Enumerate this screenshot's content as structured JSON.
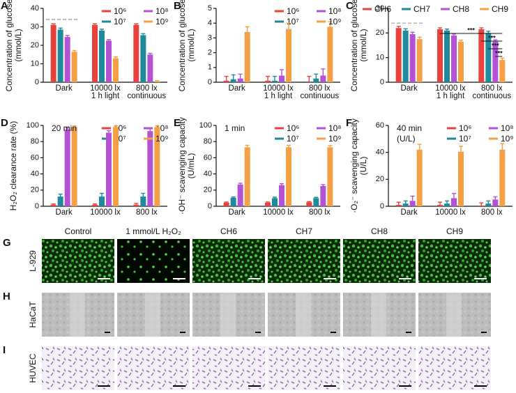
{
  "chart_data": [
    {
      "type": "bar",
      "panel": "A",
      "ylabel": [
        "Concentration of glucose",
        "(mmol/L)"
      ],
      "categories": [
        "Dark",
        "10000 lx\n1 h light",
        "800 lx\ncontinuous"
      ],
      "series": [
        {
          "name": "10⁶",
          "color": "#e8423f",
          "values": [
            31,
            31,
            31
          ],
          "errors": [
            0.6,
            0.6,
            0.6
          ]
        },
        {
          "name": "10⁷",
          "color": "#1f8a9c",
          "values": [
            28.5,
            28,
            25.5
          ],
          "errors": [
            0.8,
            0.7,
            0.8
          ]
        },
        {
          "name": "10⁸",
          "color": "#b452d6",
          "values": [
            24.5,
            22.5,
            15
          ],
          "errors": [
            0.8,
            0.6,
            0.7
          ]
        },
        {
          "name": "10⁹",
          "color": "#f5a046",
          "values": [
            16.5,
            13,
            0.5
          ],
          "errors": [
            0.7,
            0.7,
            0.3
          ]
        }
      ],
      "reference_line": 34,
      "ylim": [
        0,
        40
      ],
      "yticks": [
        0,
        10,
        20,
        30,
        40
      ],
      "legend": "top-right"
    },
    {
      "type": "bar",
      "panel": "B",
      "ylabel": [
        "Concentration of glucose",
        "(mmol/L)"
      ],
      "categories": [
        "Dark",
        "10000 lx\n1 h light",
        "800 lx\ncontinuous"
      ],
      "series": [
        {
          "name": "10⁶",
          "color": "#e8423f",
          "values": [
            0.1,
            0.1,
            0
          ],
          "errors": [
            0.3,
            0.3,
            0.4
          ]
        },
        {
          "name": "10⁷",
          "color": "#1f8a9c",
          "values": [
            0.2,
            0.1,
            0.25
          ],
          "errors": [
            0.3,
            0.3,
            0.3
          ]
        },
        {
          "name": "10⁸",
          "color": "#b452d6",
          "values": [
            0.25,
            0.45,
            0.45
          ],
          "errors": [
            0.3,
            0.4,
            0.45
          ]
        },
        {
          "name": "10⁹",
          "color": "#f5a046",
          "values": [
            3.4,
            3.6,
            3.75
          ],
          "errors": [
            0.35,
            0.4,
            0.35
          ]
        }
      ],
      "ylim": [
        0,
        5
      ],
      "yticks": [
        0,
        1,
        2,
        3,
        4,
        5
      ],
      "legend": "top-right"
    },
    {
      "type": "bar",
      "panel": "C",
      "ylabel": [
        "Concentration of glucose",
        "(mmol/L)"
      ],
      "categories": [
        "Dark",
        "10000 lx\n1 h light",
        "800 lx\ncontinuous"
      ],
      "series": [
        {
          "name": "CH6",
          "color": "#e8423f",
          "values": [
            22,
            21.5,
            21.5
          ],
          "errors": [
            0.7,
            0.6,
            0.6
          ]
        },
        {
          "name": "CH7",
          "color": "#1f8a9c",
          "values": [
            21,
            21,
            20
          ],
          "errors": [
            0.7,
            0.6,
            0.7
          ]
        },
        {
          "name": "CH8",
          "color": "#b452d6",
          "values": [
            19.5,
            19,
            16.5
          ],
          "errors": [
            0.8,
            0.6,
            0.7
          ]
        },
        {
          "name": "CH9",
          "color": "#f5a046",
          "values": [
            17.5,
            16.5,
            9
          ],
          "errors": [
            0.8,
            0.6,
            0.8
          ]
        }
      ],
      "significance": [
        "***",
        "***",
        "***",
        "***"
      ],
      "reference_line": 24,
      "ylim": [
        0,
        30
      ],
      "yticks": [
        0,
        10,
        20,
        30
      ],
      "legend": "top"
    },
    {
      "type": "bar",
      "panel": "D",
      "ylabel": [
        "H₂O₂ clearance rate (%)"
      ],
      "annotation": [
        "20 min"
      ],
      "categories": [
        "Dark",
        "10000 lx",
        "800 lx"
      ],
      "series": [
        {
          "name": "10⁶",
          "color": "#e8423f",
          "values": [
            2,
            2,
            2
          ],
          "errors": [
            1,
            1,
            1.5
          ]
        },
        {
          "name": "10⁷",
          "color": "#1f8a9c",
          "values": [
            12,
            12,
            12
          ],
          "errors": [
            3,
            4,
            4
          ]
        },
        {
          "name": "10⁸",
          "color": "#b452d6",
          "values": [
            95,
            91,
            93
          ],
          "errors": [
            2.5,
            2.5,
            3
          ]
        },
        {
          "name": "10⁹",
          "color": "#f5a046",
          "values": [
            98,
            98,
            98
          ],
          "errors": [
            1.5,
            1.5,
            1.5
          ]
        }
      ],
      "ylim": [
        0,
        100
      ],
      "yticks": [
        0,
        20,
        40,
        60,
        80,
        100
      ],
      "legend": "top-right"
    },
    {
      "type": "bar",
      "panel": "E",
      "ylabel": [
        "·OH⁻ scavenging capacity",
        "(U/mL)"
      ],
      "annotation": [
        "1 min"
      ],
      "categories": [
        "Dark",
        "10000 lx",
        "800 lx"
      ],
      "series": [
        {
          "name": "10⁶",
          "color": "#e8423f",
          "values": [
            4.5,
            4.5,
            5
          ],
          "errors": [
            0.7,
            0.7,
            0.8
          ]
        },
        {
          "name": "10⁷",
          "color": "#1f8a9c",
          "values": [
            10.5,
            10,
            10
          ],
          "errors": [
            1,
            1.2,
            1
          ]
        },
        {
          "name": "10⁸",
          "color": "#b452d6",
          "values": [
            27,
            26,
            25
          ],
          "errors": [
            1.5,
            1.8,
            1.8
          ]
        },
        {
          "name": "10⁹",
          "color": "#f5a046",
          "values": [
            73,
            73,
            73
          ],
          "errors": [
            2.5,
            2.5,
            2
          ]
        }
      ],
      "ylim": [
        0,
        100
      ],
      "yticks": [
        0,
        20,
        40,
        60,
        80,
        100
      ],
      "legend": "top-right"
    },
    {
      "type": "bar",
      "panel": "F",
      "ylabel": [
        "·O₂⁻ scavenging capacity",
        "(U/L)"
      ],
      "annotation": [
        "40 min",
        "(U/L)"
      ],
      "categories": [
        "Dark",
        "10000 lx",
        "800 lx"
      ],
      "series": [
        {
          "name": "10⁶",
          "color": "#e8423f",
          "values": [
            1,
            1,
            0.5
          ],
          "errors": [
            2,
            2,
            2
          ]
        },
        {
          "name": "10⁷",
          "color": "#1f8a9c",
          "values": [
            2,
            2,
            2
          ],
          "errors": [
            2,
            2,
            2
          ]
        },
        {
          "name": "10⁸",
          "color": "#b452d6",
          "values": [
            4,
            6,
            5
          ],
          "errors": [
            3.5,
            3.5,
            2
          ]
        },
        {
          "name": "10⁹",
          "color": "#f5a046",
          "values": [
            42,
            40.5,
            42
          ],
          "errors": [
            4,
            4,
            4.5
          ]
        }
      ],
      "ylim": [
        0,
        60
      ],
      "yticks": [
        0,
        20,
        40,
        60
      ],
      "legend": "top-right"
    }
  ],
  "image_grid": {
    "panels": [
      "G",
      "H",
      "I"
    ],
    "rows": [
      "L-929",
      "HaCaT",
      "HUVEC"
    ],
    "columns": [
      "Control",
      "1 mmol/L H₂O₂",
      "CH6",
      "CH7",
      "CH8",
      "CH9"
    ]
  }
}
